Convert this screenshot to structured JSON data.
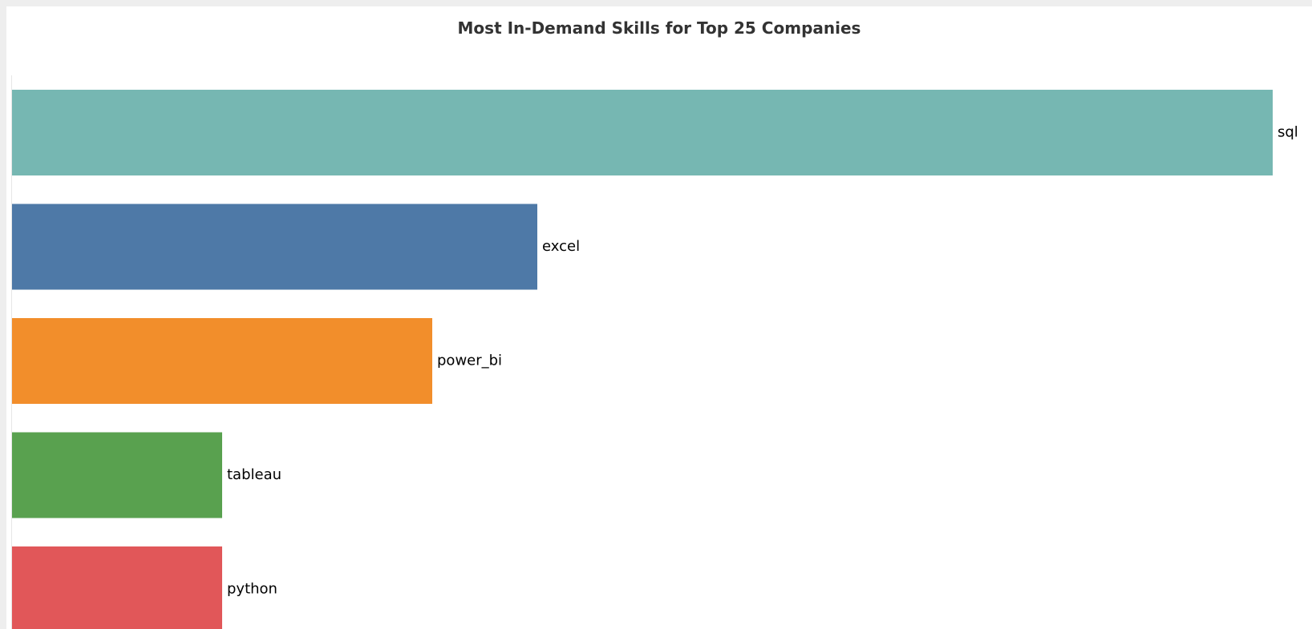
{
  "chart_data": {
    "type": "bar",
    "orientation": "horizontal",
    "title": "Most In-Demand Skills for Top 25 Companies",
    "xlabel": "",
    "ylabel": "",
    "categories": [
      "sql",
      "excel",
      "power_bi",
      "tableau",
      "python"
    ],
    "values": [
      12,
      5,
      4,
      2,
      2
    ],
    "xlim": [
      0,
      12
    ],
    "colors": [
      "#76b7b2",
      "#4e79a7",
      "#f28e2b",
      "#59a14f",
      "#e15759"
    ],
    "grid": false,
    "legend": "none",
    "labels_position": "end-of-bar"
  }
}
